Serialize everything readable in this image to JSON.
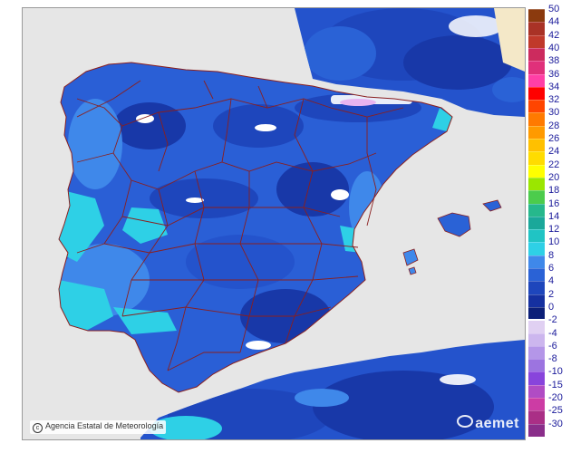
{
  "map": {
    "credit": "Agencia Estatal de Meteorología",
    "logo_text": "aemet",
    "colors": {
      "background": "#e6e6e6",
      "land_base": "#2a5fd6",
      "land_dark": "#1838a8",
      "land_light": "#3f88ea",
      "cyan": "#2ed0e6",
      "boundaries": "#8a1f1f",
      "snow": "#ffffff"
    }
  },
  "legend": {
    "labels": [
      "50",
      "44",
      "42",
      "40",
      "38",
      "36",
      "34",
      "32",
      "30",
      "28",
      "26",
      "24",
      "22",
      "20",
      "18",
      "16",
      "14",
      "12",
      "10",
      "8",
      "6",
      "4",
      "2",
      "0",
      "-2",
      "-4",
      "-6",
      "-8",
      "-10",
      "-15",
      "-20",
      "-25",
      "-30"
    ],
    "colors": [
      "#8b3a0e",
      "#a93226",
      "#c0392b",
      "#cc2b5e",
      "#e0307a",
      "#ff3fa6",
      "#ff0000",
      "#ff4500",
      "#ff7a00",
      "#ff9a00",
      "#ffc000",
      "#ffdc00",
      "#ffff00",
      "#9be600",
      "#4ccc4c",
      "#26b88c",
      "#1aa89a",
      "#20c4c4",
      "#2ed0e6",
      "#3f88ea",
      "#2a62d6",
      "#1e46bc",
      "#1530a0",
      "#0c1f78",
      "#e0d0f2",
      "#ccb6ee",
      "#b496e8",
      "#9c74e0",
      "#8844dc",
      "#b04cc4",
      "#cc3ca4",
      "#aa2f86",
      "#8a2e8a"
    ]
  }
}
